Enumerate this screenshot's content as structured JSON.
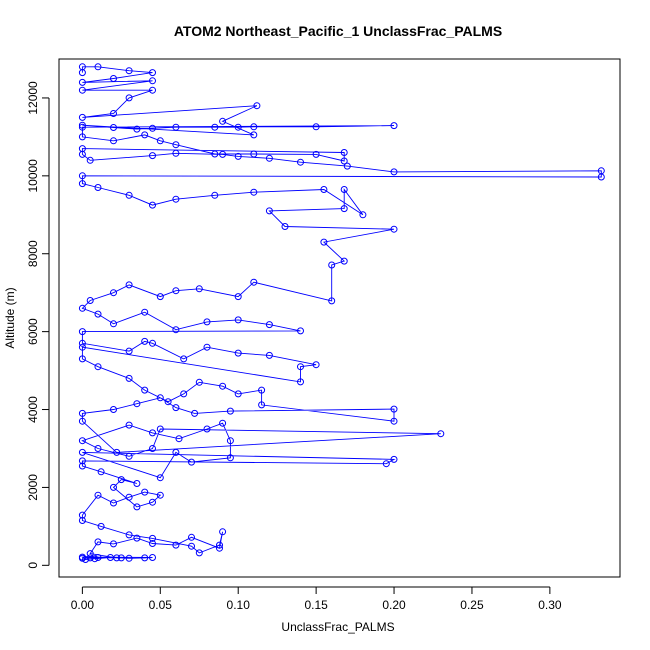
{
  "chart_data": {
    "type": "line",
    "title": "ATOM2 Northeast_Pacific_1 UnclassFrac_PALMS",
    "xlabel": "UnclassFrac_PALMS",
    "ylabel": "Altitude (m)",
    "xlim": [
      -0.015,
      0.345
    ],
    "ylim": [
      -300,
      13000
    ],
    "x_ticks": [
      0.0,
      0.05,
      0.1,
      0.15,
      0.2,
      0.25,
      0.3
    ],
    "x_tick_labels": [
      "0.00",
      "0.05",
      "0.10",
      "0.15",
      "0.20",
      "0.25",
      "0.30"
    ],
    "y_ticks": [
      0,
      2000,
      4000,
      6000,
      8000,
      10000,
      12000
    ],
    "y_tick_labels": [
      "0",
      "2000",
      "4000",
      "6000",
      "8000",
      "10000",
      "12000"
    ],
    "markers": "open-circle",
    "grid": false,
    "series": [
      {
        "color": "#0000ff",
        "points": [
          [
            0.0,
            180
          ],
          [
            0.005,
            190
          ],
          [
            0.01,
            200
          ],
          [
            0.025,
            190
          ],
          [
            0.03,
            180
          ],
          [
            0.04,
            190
          ],
          [
            0.045,
            200
          ],
          [
            0.0,
            210
          ],
          [
            0.002,
            150
          ],
          [
            0.008,
            170
          ],
          [
            0.018,
            200
          ],
          [
            0.022,
            190
          ],
          [
            0.005,
            300
          ],
          [
            0.01,
            600
          ],
          [
            0.02,
            550
          ],
          [
            0.035,
            700
          ],
          [
            0.045,
            560
          ],
          [
            0.06,
            520
          ],
          [
            0.07,
            720
          ],
          [
            0.088,
            440
          ],
          [
            0.09,
            860
          ],
          [
            0.088,
            520
          ],
          [
            0.075,
            320
          ],
          [
            0.07,
            490
          ],
          [
            0.045,
            690
          ],
          [
            0.03,
            780
          ],
          [
            0.012,
            1000
          ],
          [
            0.0,
            1150
          ],
          [
            0.0,
            1290
          ],
          [
            0.01,
            1800
          ],
          [
            0.02,
            1600
          ],
          [
            0.03,
            1750
          ],
          [
            0.04,
            1880
          ],
          [
            0.05,
            1800
          ],
          [
            0.045,
            1620
          ],
          [
            0.035,
            1500
          ],
          [
            0.02,
            2000
          ],
          [
            0.025,
            2200
          ],
          [
            0.035,
            2100
          ],
          [
            0.012,
            2400
          ],
          [
            0.0,
            2550
          ],
          [
            0.0,
            2680
          ],
          [
            0.195,
            2610
          ],
          [
            0.2,
            2720
          ],
          [
            0.0,
            2900
          ],
          [
            0.05,
            2250
          ],
          [
            0.06,
            2900
          ],
          [
            0.07,
            2650
          ],
          [
            0.095,
            2760
          ],
          [
            0.095,
            3200
          ],
          [
            0.09,
            3650
          ],
          [
            0.08,
            3500
          ],
          [
            0.062,
            3250
          ],
          [
            0.045,
            3400
          ],
          [
            0.03,
            3600
          ],
          [
            0.0,
            3200
          ],
          [
            0.01,
            3000
          ],
          [
            0.03,
            2800
          ],
          [
            0.045,
            3000
          ],
          [
            0.05,
            3500
          ],
          [
            0.23,
            3380
          ],
          [
            0.022,
            2900
          ],
          [
            0.0,
            3700
          ],
          [
            0.0,
            3900
          ],
          [
            0.02,
            4000
          ],
          [
            0.035,
            4150
          ],
          [
            0.05,
            4300
          ],
          [
            0.06,
            4050
          ],
          [
            0.072,
            3900
          ],
          [
            0.095,
            3960
          ],
          [
            0.2,
            4010
          ],
          [
            0.2,
            3700
          ],
          [
            0.115,
            4120
          ],
          [
            0.115,
            4500
          ],
          [
            0.1,
            4400
          ],
          [
            0.09,
            4600
          ],
          [
            0.075,
            4700
          ],
          [
            0.065,
            4400
          ],
          [
            0.055,
            4200
          ],
          [
            0.04,
            4500
          ],
          [
            0.03,
            4800
          ],
          [
            0.01,
            5100
          ],
          [
            0.0,
            5300
          ],
          [
            0.0,
            5600
          ],
          [
            0.14,
            4710
          ],
          [
            0.14,
            5100
          ],
          [
            0.15,
            5150
          ],
          [
            0.12,
            5390
          ],
          [
            0.1,
            5450
          ],
          [
            0.08,
            5600
          ],
          [
            0.065,
            5300
          ],
          [
            0.045,
            5700
          ],
          [
            0.04,
            5750
          ],
          [
            0.03,
            5500
          ],
          [
            0.0,
            5700
          ],
          [
            0.0,
            6000
          ],
          [
            0.14,
            6020
          ],
          [
            0.12,
            6180
          ],
          [
            0.1,
            6300
          ],
          [
            0.08,
            6250
          ],
          [
            0.06,
            6050
          ],
          [
            0.04,
            6500
          ],
          [
            0.02,
            6200
          ],
          [
            0.01,
            6450
          ],
          [
            0.0,
            6600
          ],
          [
            0.005,
            6800
          ],
          [
            0.02,
            7000
          ],
          [
            0.03,
            7200
          ],
          [
            0.05,
            6900
          ],
          [
            0.06,
            7050
          ],
          [
            0.075,
            7100
          ],
          [
            0.1,
            6900
          ],
          [
            0.11,
            7270
          ],
          [
            0.16,
            6790
          ],
          [
            0.16,
            7710
          ],
          [
            0.168,
            7810
          ],
          [
            0.155,
            8300
          ],
          [
            0.2,
            8630
          ],
          [
            0.13,
            8700
          ],
          [
            0.12,
            9100
          ],
          [
            0.168,
            9160
          ],
          [
            0.168,
            9650
          ],
          [
            0.18,
            9000
          ],
          [
            0.155,
            9650
          ],
          [
            0.11,
            9580
          ],
          [
            0.085,
            9500
          ],
          [
            0.06,
            9400
          ],
          [
            0.045,
            9250
          ],
          [
            0.03,
            9500
          ],
          [
            0.01,
            9700
          ],
          [
            0.0,
            9800
          ],
          [
            0.0,
            10000
          ],
          [
            0.333,
            9970
          ],
          [
            0.333,
            10130
          ],
          [
            0.2,
            10100
          ],
          [
            0.17,
            10250
          ],
          [
            0.14,
            10350
          ],
          [
            0.12,
            10450
          ],
          [
            0.1,
            10500
          ],
          [
            0.09,
            10550
          ],
          [
            0.06,
            10580
          ],
          [
            0.045,
            10520
          ],
          [
            0.005,
            10400
          ],
          [
            0.0,
            10550
          ],
          [
            0.0,
            10700
          ],
          [
            0.168,
            10600
          ],
          [
            0.168,
            10380
          ],
          [
            0.15,
            10550
          ],
          [
            0.11,
            10560
          ],
          [
            0.085,
            10560
          ],
          [
            0.06,
            10800
          ],
          [
            0.05,
            10900
          ],
          [
            0.04,
            11050
          ],
          [
            0.02,
            10900
          ],
          [
            0.0,
            11000
          ],
          [
            0.0,
            11250
          ],
          [
            0.2,
            11290
          ],
          [
            0.15,
            11260
          ],
          [
            0.11,
            11260
          ],
          [
            0.1,
            11250
          ],
          [
            0.085,
            11250
          ],
          [
            0.06,
            11250
          ],
          [
            0.045,
            11220
          ],
          [
            0.035,
            11200
          ],
          [
            0.02,
            11240
          ],
          [
            0.0,
            11300
          ],
          [
            0.11,
            11050
          ],
          [
            0.09,
            11400
          ],
          [
            0.112,
            11800
          ],
          [
            0.0,
            11500
          ],
          [
            0.02,
            11600
          ],
          [
            0.03,
            12000
          ],
          [
            0.045,
            12200
          ],
          [
            0.0,
            12200
          ],
          [
            0.045,
            12440
          ],
          [
            0.0,
            12400
          ],
          [
            0.02,
            12500
          ],
          [
            0.045,
            12650
          ],
          [
            0.03,
            12700
          ],
          [
            0.01,
            12800
          ],
          [
            0.0,
            12800
          ],
          [
            0.0,
            12650
          ]
        ]
      }
    ]
  }
}
